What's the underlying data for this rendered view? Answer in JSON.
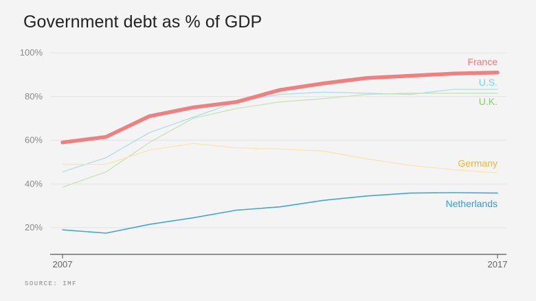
{
  "title": "Government debt as % of GDP",
  "source": "SOURCE: IMF",
  "chart_data": {
    "type": "line",
    "title": "Government debt as % of GDP",
    "xlabel": "",
    "ylabel": "",
    "x": [
      2007,
      2008,
      2009,
      2010,
      2011,
      2012,
      2013,
      2014,
      2015,
      2016,
      2017
    ],
    "x_tick_labels": [
      "2007",
      "2017"
    ],
    "y_ticks": [
      20,
      40,
      60,
      80,
      100
    ],
    "y_tick_labels": [
      "20%",
      "40%",
      "60%",
      "80%",
      "100%"
    ],
    "ylim": [
      7,
      100
    ],
    "grid": true,
    "legend": "direct labels at right end of lines",
    "series": [
      {
        "name": "France",
        "color": "#ef8080",
        "width": 5.5,
        "values": [
          59,
          61.5,
          71,
          75,
          77.5,
          83,
          86,
          88.5,
          89.5,
          90.5,
          91
        ]
      },
      {
        "name": "U.S.",
        "color": "#a9dbec",
        "width": 1.2,
        "values": [
          45.5,
          52,
          63.5,
          70.5,
          77.5,
          81,
          82,
          81.5,
          81,
          83.3,
          83.3
        ]
      },
      {
        "name": "U.K.",
        "color": "#bfe3b2",
        "width": 1.2,
        "values": [
          38.5,
          45.5,
          59,
          70,
          74.5,
          77.5,
          79,
          81,
          81.5,
          81.5,
          81.5
        ]
      },
      {
        "name": "Germany",
        "color": "#fbe3a8",
        "width": 1.2,
        "values": [
          49,
          49,
          55.5,
          58.5,
          56.5,
          56,
          55,
          51.5,
          48.5,
          46.5,
          45
        ]
      },
      {
        "name": "Netherlands",
        "color": "#3ea6d6",
        "width": 1.6,
        "values": [
          19,
          17.5,
          21.5,
          24.5,
          28,
          29.5,
          32.5,
          34.5,
          35.8,
          36,
          35.8
        ]
      }
    ],
    "label_colors": {
      "France": "#ef7b7b",
      "U.S.": "#7fcfe6",
      "U.K.": "#88c96f",
      "Germany": "#f1b733",
      "Netherlands": "#2b9fd3"
    }
  }
}
